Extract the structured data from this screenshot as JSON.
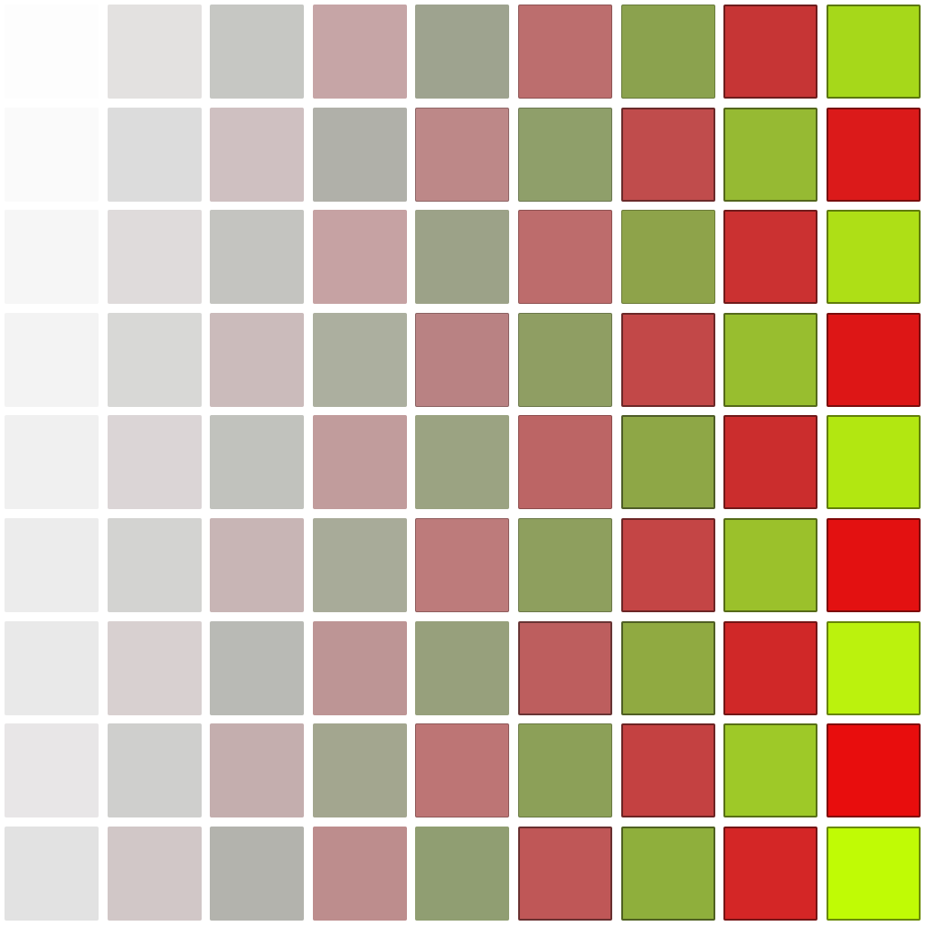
{
  "grid": {
    "rows": 9,
    "columns": 9,
    "colors": [
      [
        "#fdfdfd",
        "#e3e1e0",
        "#c6c7c3",
        "#c6a5a6",
        "#9ea38f",
        "#bc6e6e",
        "#8ba24e",
        "#c63535",
        "#a6d81a"
      ],
      [
        "#fafafa",
        "#dcdcdc",
        "#cfc0c1",
        "#b0b0a9",
        "#bd8888",
        "#8f9f6a",
        "#c04c4c",
        "#96ba33",
        "#db1a1a"
      ],
      [
        "#f6f6f6",
        "#dfdbdb",
        "#c4c4c0",
        "#c6a2a3",
        "#9ca288",
        "#bd6c6c",
        "#8ea34a",
        "#cb3131",
        "#aedf16"
      ],
      [
        "#f3f3f3",
        "#d8d8d6",
        "#cbbbbb",
        "#acaf9f",
        "#b98283",
        "#8f9e63",
        "#c24848",
        "#98be2f",
        "#dd1616"
      ],
      [
        "#f0f0f0",
        "#dbd5d6",
        "#c1c2bd",
        "#c19c9c",
        "#9ba382",
        "#bc6565",
        "#8ea746",
        "#cb2d2d",
        "#b2e711"
      ],
      [
        "#ececec",
        "#d3d3d1",
        "#c8b5b5",
        "#a8ab99",
        "#bd7b7b",
        "#8e9f5e",
        "#c44545",
        "#9bc12b",
        "#e31111"
      ],
      [
        "#e9e9e9",
        "#d8d0d0",
        "#b9bab5",
        "#bd9595",
        "#97a07c",
        "#bd5e5e",
        "#90aa41",
        "#d02828",
        "#bbf20d"
      ],
      [
        "#e8e6e7",
        "#cfcfcd",
        "#c4aeae",
        "#a3a68f",
        "#bd7575",
        "#8ca058",
        "#c44141",
        "#9ec928",
        "#e80d0d"
      ],
      [
        "#e2e2e2",
        "#d1c7c7",
        "#b3b3ad",
        "#bd8d8d",
        "#909e72",
        "#bf5757",
        "#8faf3c",
        "#d42626",
        "#c0fb05"
      ]
    ]
  }
}
